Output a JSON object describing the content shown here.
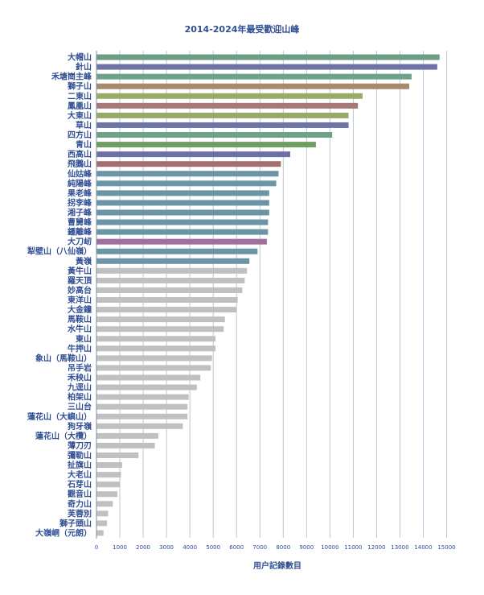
{
  "chart_data": {
    "type": "bar",
    "orientation": "horizontal",
    "title": "2014-2024年最受歡迎山峰",
    "xlabel": "用户記錄數目",
    "ylabel": "",
    "xlim": [
      0,
      15500
    ],
    "x_ticks": [
      "0",
      "1000",
      "2000",
      "3000",
      "4000",
      "5000",
      "6000",
      "7000",
      "8000",
      "9000",
      "10000",
      "11000",
      "12000",
      "13000",
      "14000",
      "15000"
    ],
    "x_tick_values": [
      0,
      1000,
      2000,
      3000,
      4000,
      5000,
      6000,
      7000,
      8000,
      9000,
      10000,
      11000,
      12000,
      13000,
      14000,
      15000
    ],
    "categories": [
      "大帽山",
      "針山",
      "禾塘崗主峰",
      "獅子山",
      "二東山",
      "鳳凰山",
      "大東山",
      "草山",
      "四方山",
      "青山",
      "西高山",
      "飛鵝山",
      "仙姑峰",
      "純陽峰",
      "果老峰",
      "拐李峰",
      "湘子峰",
      "曹舅峰",
      "鍾離峰",
      "大刀屻",
      "犁壁山（八仙嶺）",
      "黃嶺",
      "黃牛山",
      "羅天頂",
      "妙高台",
      "東洋山",
      "大金鐘",
      "馬鞍山",
      "水牛山",
      "東山",
      "牛押山",
      "象山（馬鞍山）",
      "吊手岩",
      "禾秧山",
      "九逕山",
      "柏架山",
      "三山台",
      "蓮花山（大嶼山）",
      "狗牙嶺",
      "蓮花山（大欖）",
      "薄刀刃",
      "彌勒山",
      "扯旗山",
      "大老山",
      "石芽山",
      "觀音山",
      "奇力山",
      "芙蓉別",
      "獅子頭山",
      "大嶺峒（元朗）"
    ],
    "values": [
      14700,
      14600,
      13500,
      13400,
      11400,
      11200,
      10800,
      10800,
      10100,
      9400,
      8300,
      7900,
      7800,
      7700,
      7400,
      7400,
      7400,
      7350,
      7350,
      7300,
      6900,
      6550,
      6450,
      6350,
      6250,
      6050,
      6000,
      5500,
      5450,
      5100,
      5100,
      4950,
      4900,
      4450,
      4300,
      3950,
      3900,
      3900,
      3700,
      2650,
      2500,
      1800,
      1100,
      1050,
      1000,
      900,
      700,
      500,
      450,
      300
    ],
    "colors": [
      "#6c9e86",
      "#6f73a7",
      "#6ea38a",
      "#a7896b",
      "#9aab68",
      "#a87777",
      "#95a96b",
      "#6d76a6",
      "#6fa284",
      "#6f9e65",
      "#6f6fa8",
      "#a46f70",
      "#6b94a4",
      "#6a96a5",
      "#6b94a4",
      "#6b94a4",
      "#6b94a4",
      "#6b94a4",
      "#6b94a4",
      "#a06f9c",
      "#6b94a4",
      "#6b94a4",
      "#c0c0c0",
      "#c0c0c0",
      "#c0c0c0",
      "#c0c0c0",
      "#c0c0c0",
      "#c0c0c0",
      "#c0c0c0",
      "#c0c0c0",
      "#c0c0c0",
      "#c0c0c0",
      "#c0c0c0",
      "#c0c0c0",
      "#c0c0c0",
      "#c0c0c0",
      "#c0c0c0",
      "#c0c0c0",
      "#c0c0c0",
      "#c0c0c0",
      "#c0c0c0",
      "#c0c0c0",
      "#c0c0c0",
      "#c0c0c0",
      "#c0c0c0",
      "#c0c0c0",
      "#c0c0c0",
      "#c0c0c0",
      "#c0c0c0",
      "#c0c0c0"
    ],
    "grid": true,
    "legend": "none"
  },
  "theme": {
    "text_color": "#2f4e93",
    "grid_color": "#5b83a5",
    "axis_color": "#7e8da5"
  }
}
